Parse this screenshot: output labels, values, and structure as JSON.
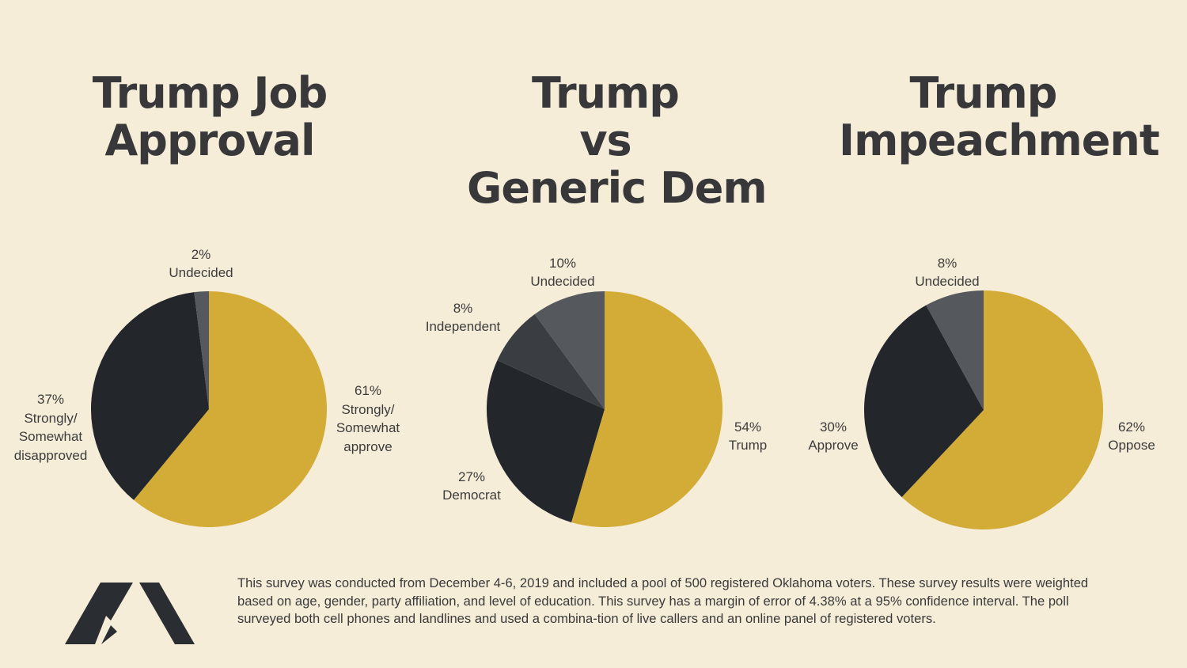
{
  "colors": {
    "background": "#f5edd8",
    "gold": "#d3ac37",
    "black": "#23262b",
    "gray_dark": "#3a3d42",
    "gray": "#55585d"
  },
  "chart_data": [
    {
      "type": "pie",
      "title_lines": [
        "Trump Job",
        "Approval"
      ],
      "slices": [
        {
          "label_lines": [
            "61%",
            "Strongly/",
            "Somewhat",
            "approve"
          ],
          "value": 61,
          "color": "#d3ac37"
        },
        {
          "label_lines": [
            "37%",
            "Strongly/",
            "Somewhat",
            "disapproved"
          ],
          "value": 37,
          "color": "#23262b"
        },
        {
          "label_lines": [
            "2%",
            "Undecided"
          ],
          "value": 2,
          "color": "#55585d"
        }
      ]
    },
    {
      "type": "pie",
      "title_lines": [
        "Trump",
        "vs",
        "Generic Dem"
      ],
      "slices": [
        {
          "label_lines": [
            "54%",
            "Trump"
          ],
          "value": 54,
          "color": "#d3ac37"
        },
        {
          "label_lines": [
            "27%",
            "Democrat"
          ],
          "value": 27,
          "color": "#23262b"
        },
        {
          "label_lines": [
            "8%",
            "Independent"
          ],
          "value": 8,
          "color": "#3a3d42"
        },
        {
          "label_lines": [
            "10%",
            "Undecided"
          ],
          "value": 10,
          "color": "#55585d"
        }
      ]
    },
    {
      "type": "pie",
      "title_lines": [
        "Trump",
        "Impeachment"
      ],
      "slices": [
        {
          "label_lines": [
            "62%",
            "Oppose"
          ],
          "value": 62,
          "color": "#d3ac37"
        },
        {
          "label_lines": [
            "30%",
            "Approve"
          ],
          "value": 30,
          "color": "#23262b"
        },
        {
          "label_lines": [
            "8%",
            "Undecided"
          ],
          "value": 8,
          "color": "#55585d"
        }
      ]
    }
  ],
  "footnote": "This survey was conducted from December 4-6, 2019 and included a pool of 500 registered Oklahoma voters. These survey results were weighted based on age, gender, party affiliation, and level of education. This survey has a margin of error of 4.38% at a 95% confidence interval. The poll surveyed both cell phones and landlines and used a combina-tion of live callers and an online panel of registered voters.",
  "logo_icon": "amber-integrated-logo"
}
